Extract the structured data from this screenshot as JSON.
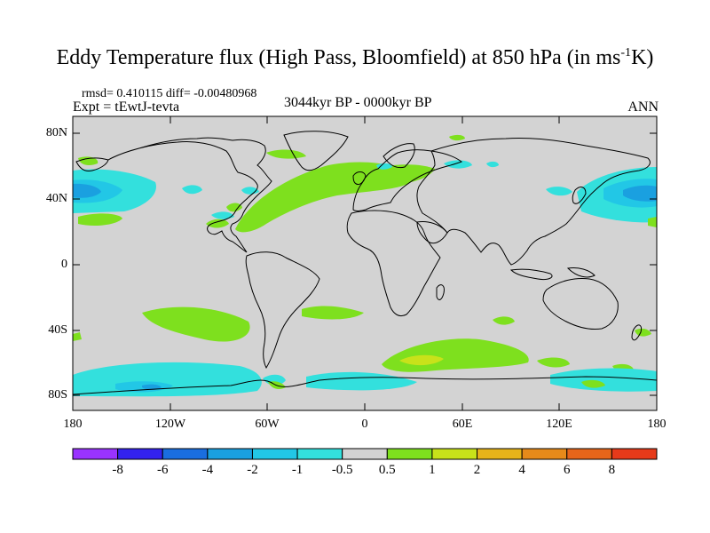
{
  "title": "Eddy Temperature flux (High Pass, Bloomfield) at 850 hPa (in ms",
  "title_sup": "-1",
  "title_end": "K)",
  "stats": "rmsd= 0.410115 diff= -0.00480968",
  "expt": "Expt = tEwtJ-tevta",
  "period": "3044kyr BP - 0000kyr BP",
  "season": "ANN",
  "map": {
    "background_color": "#d3d3d3",
    "y_ticks": [
      "80N",
      "40N",
      "0",
      "40S",
      "80S"
    ],
    "x_ticks": [
      "180",
      "120W",
      "60W",
      "0",
      "60E",
      "120E",
      "180"
    ]
  },
  "colorbar": {
    "labels": [
      "-8",
      "-6",
      "-4",
      "-2",
      "-1",
      "-0.5",
      "0.5",
      "1",
      "2",
      "4",
      "6",
      "8"
    ],
    "colors": [
      "#9933ff",
      "#3322ee",
      "#1a6ee0",
      "#1aa0e0",
      "#22c7e6",
      "#33e0dd",
      "#d3d3d3",
      "#7ee01e",
      "#c8e21a",
      "#e6b31a",
      "#e68a1a",
      "#e6651a",
      "#e63a1a"
    ]
  }
}
